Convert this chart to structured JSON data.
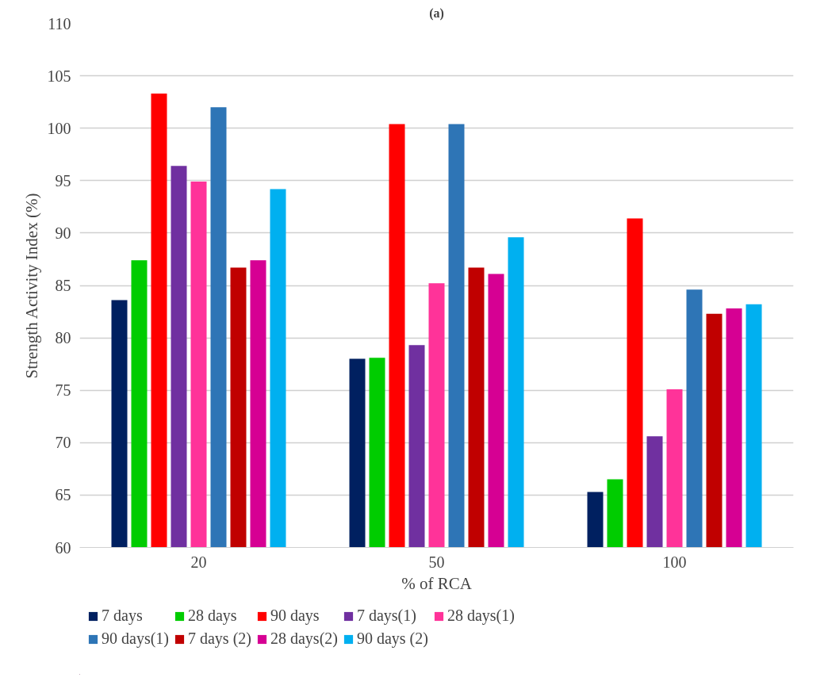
{
  "chart_data": {
    "type": "bar",
    "title": "(a)",
    "xlabel": "% of RCA",
    "ylabel": "Strength Activity Index (%)",
    "categories": [
      "20",
      "50",
      "100"
    ],
    "series": [
      {
        "name": "7 days",
        "color": "#002060",
        "values": [
          83.6,
          78.0,
          65.3
        ]
      },
      {
        "name": "28 days",
        "color": "#00cc00",
        "values": [
          87.4,
          78.1,
          66.5
        ]
      },
      {
        "name": "90 days",
        "color": "#ff0000",
        "values": [
          103.3,
          100.4,
          91.4
        ]
      },
      {
        "name": "7 days(1)",
        "color": "#7030a0",
        "values": [
          96.4,
          79.3,
          70.6
        ]
      },
      {
        "name": "28 days(1)",
        "color": "#ff3399",
        "values": [
          94.9,
          85.2,
          75.1
        ]
      },
      {
        "name": "90 days(1)",
        "color": "#2e75b6",
        "values": [
          102.0,
          100.4,
          84.6
        ]
      },
      {
        "name": "7 days (2)",
        "color": "#c00000",
        "values": [
          86.7,
          86.7,
          82.3
        ]
      },
      {
        "name": "28 days(2)",
        "color": "#d60093",
        "values": [
          87.4,
          86.1,
          82.8
        ]
      },
      {
        "name": "90 days (2)",
        "color": "#00b0f0",
        "values": [
          94.2,
          89.6,
          83.2
        ]
      }
    ],
    "ylim": [
      60,
      110
    ],
    "yticks": [
      60,
      65,
      70,
      75,
      80,
      85,
      90,
      95,
      100,
      105,
      110
    ],
    "grid": "y",
    "legend": "bottom"
  }
}
